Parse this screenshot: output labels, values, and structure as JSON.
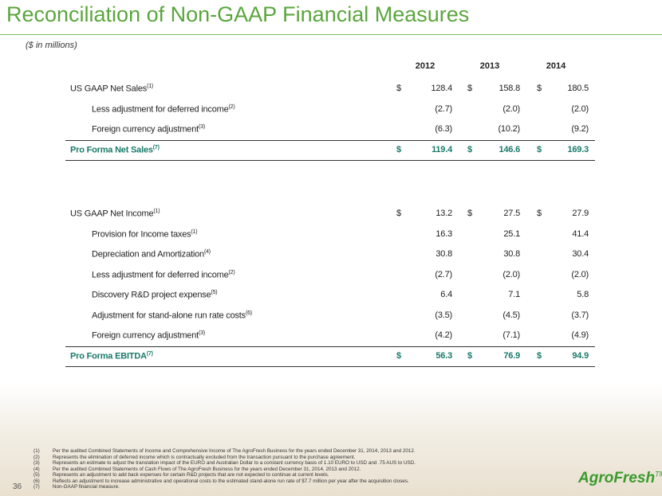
{
  "header": {
    "title": "Reconciliation of Non-GAAP Financial Measures",
    "subtitle": "($ in millions)"
  },
  "columns": [
    "2012",
    "2013",
    "2014"
  ],
  "tables": [
    {
      "rows": [
        {
          "label": "US GAAP Net Sales",
          "note": "(1)",
          "currency": "$",
          "values": [
            "128.4",
            "158.8",
            "180.5"
          ]
        },
        {
          "label": "Less adjustment for deferred income",
          "note": "(2)",
          "values": [
            "(2.7)",
            "(2.0)",
            "(2.0)"
          ]
        },
        {
          "label": "Foreign currency adjustment",
          "note": "(3)",
          "values": [
            "(6.3)",
            "(10.2)",
            "(9.2)"
          ]
        }
      ],
      "total": {
        "label": "Pro Forma Net Sales",
        "note": "(7)",
        "currency": "$",
        "values": [
          "119.4",
          "146.6",
          "169.3"
        ]
      }
    },
    {
      "rows": [
        {
          "label": "US GAAP Net Income",
          "note": "(1)",
          "currency": "$",
          "values": [
            "13.2",
            "27.5",
            "27.9"
          ]
        },
        {
          "label": "Provision for Income taxes",
          "note": "(1)",
          "values": [
            "16.3",
            "25.1",
            "41.4"
          ]
        },
        {
          "label": "Depreciation and Amortization",
          "note": "(4)",
          "values": [
            "30.8",
            "30.8",
            "30.4"
          ]
        },
        {
          "label": "Less adjustment for deferred income",
          "note": "(2)",
          "values": [
            "(2.7)",
            "(2.0)",
            "(2.0)"
          ]
        },
        {
          "label": "Discovery R&D project expense",
          "note": "(5)",
          "values": [
            "6.4",
            "7.1",
            "5.8"
          ]
        },
        {
          "label": "Adjustment for stand-alone run rate costs",
          "note": "(6)",
          "values": [
            "(3.5)",
            "(4.5)",
            "(3.7)"
          ]
        },
        {
          "label": "Foreign currency adjustment",
          "note": "(3)",
          "values": [
            "(4.2)",
            "(7.1)",
            "(4.9)"
          ]
        }
      ],
      "total": {
        "label": "Pro Forma EBITDA",
        "note": "(7)",
        "currency": "$",
        "values": [
          "56.3",
          "76.9",
          "94.9"
        ]
      }
    }
  ],
  "footnotes": [
    {
      "num": "(1)",
      "text": "Per the audited Combined Statements of Income and Comprehensive Income of The AgroFresh Business for the years ended December 31, 2014, 2013 and 2012."
    },
    {
      "num": "(2)",
      "text": "Represents the elimination of deferred income which is contractually excluded from the transaction pursuant to the purchase agreement."
    },
    {
      "num": "(3)",
      "text": "Represents an estimate to adjust the translation impact of the EURO and Australian Dollar to a constant currency basis of 1.10 EURO to USD and .75 AUS to USD."
    },
    {
      "num": "(4)",
      "text": "Per the audited Combined Statements of Cash Flows of The AgroFresh Business for the years ended December 31, 2014, 2013 and 2012."
    },
    {
      "num": "(5)",
      "text": "Represents an adjustment to add back expenses for certain R&D projects that are not expected to continue at current levels."
    },
    {
      "num": "(6)",
      "text": "Reflects an adjustment to increase administrative and operational costs to the estimated stand-alone run rate of $7.7 million per year after the acquisition closes."
    },
    {
      "num": "(7)",
      "text": "Non-GAAP financial measure."
    }
  ],
  "page_number": "36",
  "logo": {
    "text": "AgroFresh",
    "mark": "TM"
  }
}
